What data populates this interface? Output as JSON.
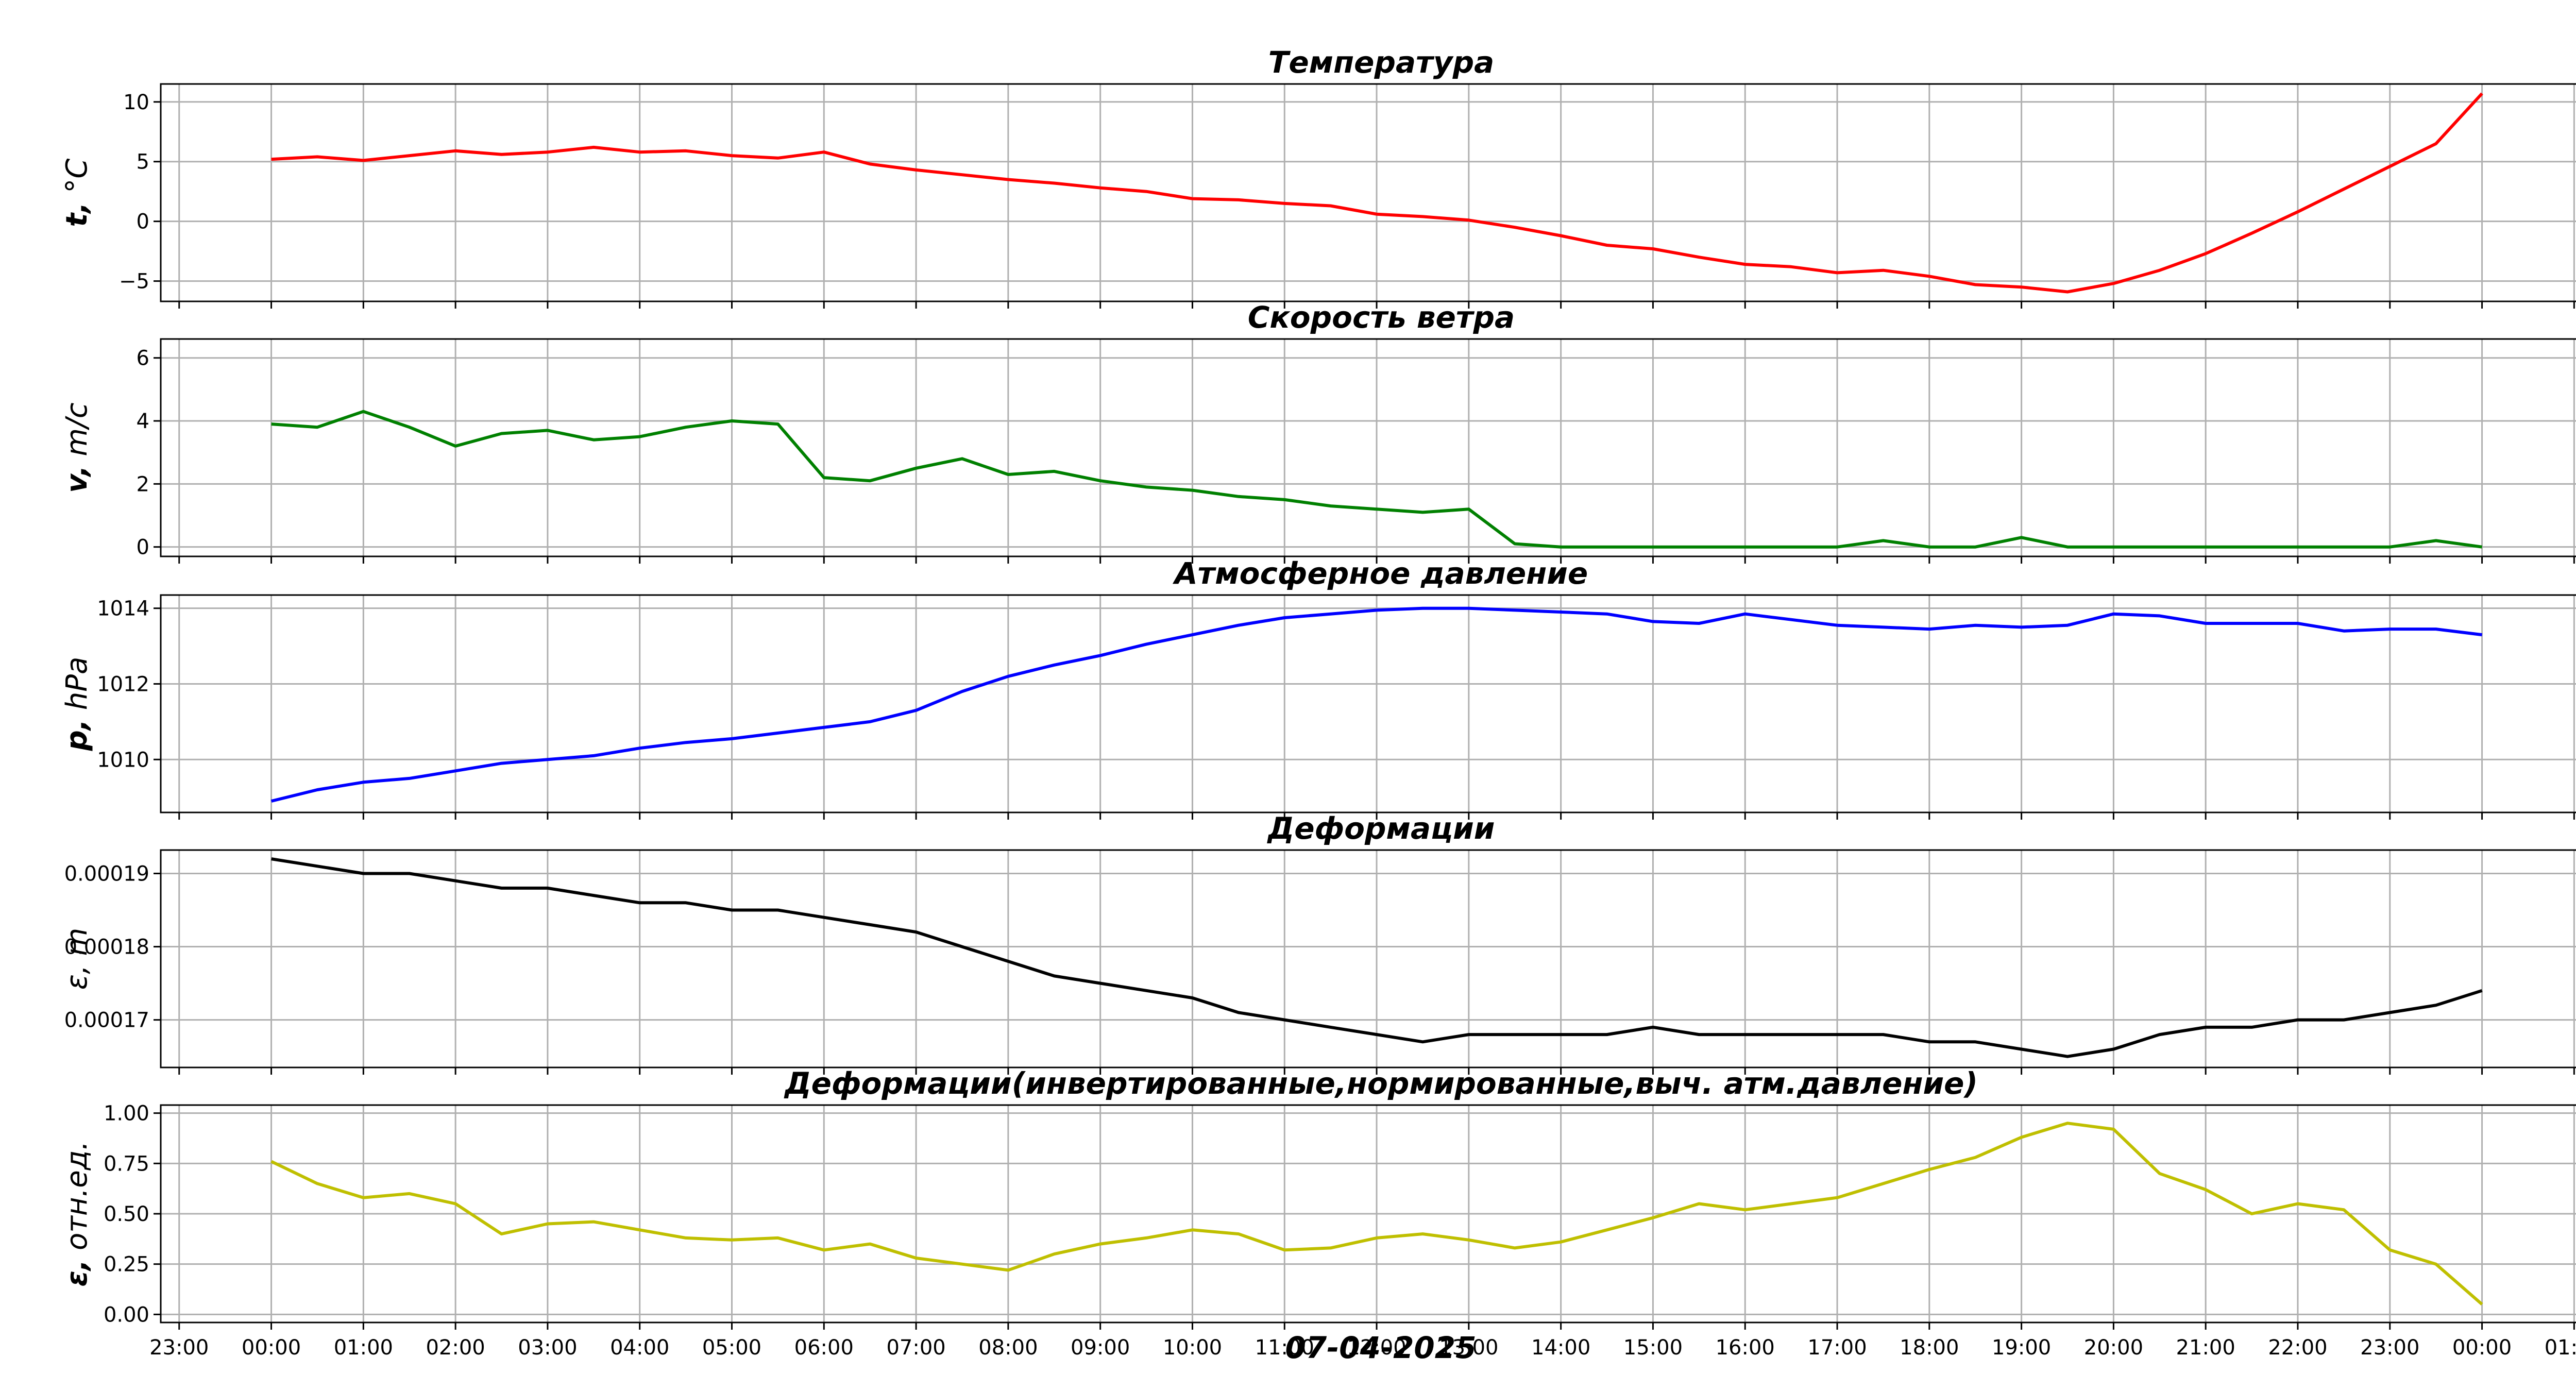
{
  "figure": {
    "xlabel": "07-04-2025",
    "x_tick_labels": [
      "23:00",
      "00:00",
      "01:00",
      "02:00",
      "03:00",
      "04:00",
      "05:00",
      "06:00",
      "07:00",
      "08:00",
      "09:00",
      "10:00",
      "11:00",
      "12:00",
      "13:00",
      "14:00",
      "15:00",
      "16:00",
      "17:00",
      "18:00",
      "19:00",
      "20:00",
      "21:00",
      "22:00",
      "23:00",
      "00:00",
      "01:00"
    ]
  },
  "chart_data": [
    {
      "type": "line",
      "title": "Температура",
      "ylabel_bold": "t,",
      "ylabel_rest": " °C",
      "xlim": [
        -1.2,
        25.3
      ],
      "ylim": [
        -6.7,
        11.5
      ],
      "yticks": [
        -5,
        0,
        5,
        10
      ],
      "ytick_labels": [
        "−5",
        "0",
        "5",
        "10"
      ],
      "grid": true,
      "color": "#ff0000",
      "series": [
        {
          "x": [
            0,
            0.5,
            1,
            1.5,
            2,
            2.5,
            3,
            3.5,
            4,
            4.5,
            5,
            5.5,
            6,
            6.5,
            7,
            7.5,
            8,
            8.5,
            9,
            9.5,
            10,
            10.5,
            11,
            11.5,
            12,
            12.5,
            13,
            13.5,
            14,
            14.5,
            15,
            15.5,
            16,
            16.5,
            17,
            17.5,
            18,
            18.5,
            19,
            19.5,
            20,
            20.5,
            21,
            21.5,
            22,
            22.5,
            23,
            23.5,
            24
          ],
          "y": [
            5.2,
            5.4,
            5.1,
            5.5,
            5.9,
            5.6,
            5.8,
            6.2,
            5.8,
            5.9,
            5.5,
            5.3,
            5.8,
            4.8,
            4.3,
            3.9,
            3.5,
            3.2,
            2.8,
            2.5,
            1.9,
            1.8,
            1.5,
            1.3,
            0.6,
            0.4,
            0.1,
            -0.5,
            -1.2,
            -2.0,
            -2.3,
            -3.0,
            -3.6,
            -3.8,
            -4.3,
            -4.1,
            -4.6,
            -5.3,
            -5.5,
            -5.9,
            -5.2,
            -4.1,
            -2.7,
            -1.0,
            0.8,
            2.7,
            4.6,
            6.5,
            10.7
          ]
        }
      ]
    },
    {
      "type": "line",
      "title": "Скорость ветра",
      "ylabel_bold": "v,",
      "ylabel_rest": " m/c",
      "xlim": [
        -1.2,
        25.3
      ],
      "ylim": [
        -0.3,
        6.6
      ],
      "yticks": [
        0,
        2,
        4,
        6
      ],
      "ytick_labels": [
        "0",
        "2",
        "4",
        "6"
      ],
      "grid": true,
      "color": "#008000",
      "series": [
        {
          "x": [
            0,
            0.5,
            1,
            1.5,
            2,
            2.5,
            3,
            3.5,
            4,
            4.5,
            5,
            5.5,
            6,
            6.5,
            7,
            7.5,
            8,
            8.5,
            9,
            9.5,
            10,
            10.5,
            11,
            11.5,
            12,
            12.5,
            13,
            13.5,
            14,
            14.5,
            15,
            15.5,
            16,
            16.5,
            17,
            17.5,
            18,
            18.5,
            19,
            19.5,
            20,
            20.5,
            21,
            21.5,
            22,
            22.5,
            23,
            23.5,
            24
          ],
          "y": [
            3.9,
            3.8,
            4.3,
            3.8,
            3.2,
            3.6,
            3.7,
            3.4,
            3.5,
            3.8,
            4.0,
            3.9,
            2.2,
            2.1,
            2.5,
            2.8,
            2.3,
            2.4,
            2.1,
            1.9,
            1.8,
            1.6,
            1.5,
            1.3,
            1.2,
            1.1,
            1.2,
            0.1,
            0.0,
            0.0,
            0.0,
            0.0,
            0.0,
            0.0,
            0.0,
            0.2,
            0.0,
            0.0,
            0.3,
            0.0,
            0.0,
            0.0,
            0.0,
            0.0,
            0.0,
            0.0,
            0.0,
            0.2,
            0.0
          ]
        }
      ]
    },
    {
      "type": "line",
      "title": "Атмосферное давление",
      "ylabel_bold": "p,",
      "ylabel_rest": " hPa",
      "xlim": [
        -1.2,
        25.3
      ],
      "ylim": [
        1008.6,
        1014.35
      ],
      "yticks": [
        1010,
        1012,
        1014
      ],
      "ytick_labels": [
        "1010",
        "1012",
        "1014"
      ],
      "grid": true,
      "color": "#0000ff",
      "series": [
        {
          "x": [
            0,
            0.5,
            1,
            1.5,
            2,
            2.5,
            3,
            3.5,
            4,
            4.5,
            5,
            5.5,
            6,
            6.5,
            7,
            7.5,
            8,
            8.5,
            9,
            9.5,
            10,
            10.5,
            11,
            11.5,
            12,
            12.5,
            13,
            13.5,
            14,
            14.5,
            15,
            15.5,
            16,
            16.5,
            17,
            17.5,
            18,
            18.5,
            19,
            19.5,
            20,
            20.5,
            21,
            21.5,
            22,
            22.5,
            23,
            23.5,
            24
          ],
          "y": [
            1008.9,
            1009.2,
            1009.4,
            1009.5,
            1009.7,
            1009.9,
            1010.0,
            1010.1,
            1010.3,
            1010.45,
            1010.55,
            1010.7,
            1010.85,
            1011.0,
            1011.3,
            1011.8,
            1012.2,
            1012.5,
            1012.75,
            1013.05,
            1013.3,
            1013.55,
            1013.75,
            1013.85,
            1013.95,
            1014.0,
            1014.0,
            1013.95,
            1013.9,
            1013.85,
            1013.65,
            1013.6,
            1013.85,
            1013.7,
            1013.55,
            1013.5,
            1013.45,
            1013.55,
            1013.5,
            1013.55,
            1013.85,
            1013.8,
            1013.6,
            1013.6,
            1013.6,
            1013.4,
            1013.45,
            1013.45,
            1013.3
          ]
        }
      ]
    },
    {
      "type": "line",
      "title": "Деформации",
      "ylabel_bold": "",
      "ylabel_rest": "ε, m",
      "xlim": [
        -1.2,
        25.3
      ],
      "ylim": [
        0.0001635,
        0.0001932
      ],
      "yticks": [
        0.00017,
        0.00018,
        0.00019
      ],
      "ytick_labels": [
        "0.00017",
        "0.00018",
        "0.00019"
      ],
      "grid": true,
      "color": "#000000",
      "series": [
        {
          "x": [
            0,
            0.5,
            1,
            1.5,
            2,
            2.5,
            3,
            3.5,
            4,
            4.5,
            5,
            5.5,
            6,
            6.5,
            7,
            7.5,
            8,
            8.5,
            9,
            9.5,
            10,
            10.5,
            11,
            11.5,
            12,
            12.5,
            13,
            13.5,
            14,
            14.5,
            15,
            15.5,
            16,
            16.5,
            17,
            17.5,
            18,
            18.5,
            19,
            19.5,
            20,
            20.5,
            21,
            21.5,
            22,
            22.5,
            23,
            23.5,
            24
          ],
          "y": [
            0.000192,
            0.000191,
            0.00019,
            0.00019,
            0.000189,
            0.000188,
            0.000188,
            0.000187,
            0.000186,
            0.000186,
            0.000185,
            0.000185,
            0.000184,
            0.000183,
            0.000182,
            0.00018,
            0.000178,
            0.000176,
            0.000175,
            0.000174,
            0.000173,
            0.000171,
            0.00017,
            0.000169,
            0.000168,
            0.000167,
            0.000168,
            0.000168,
            0.000168,
            0.000168,
            0.000169,
            0.000168,
            0.000168,
            0.000168,
            0.000168,
            0.000168,
            0.000167,
            0.000167,
            0.000166,
            0.000165,
            0.000166,
            0.000168,
            0.000169,
            0.000169,
            0.00017,
            0.00017,
            0.000171,
            0.000172,
            0.000174
          ]
        }
      ]
    },
    {
      "type": "line",
      "title": "Деформации(инвертированные,нормированные,выч. атм.давление)",
      "ylabel_bold": "ε,",
      "ylabel_rest": " отн.ед.",
      "xlim": [
        -1.2,
        25.3
      ],
      "ylim": [
        -0.04,
        1.04
      ],
      "yticks": [
        0,
        0.25,
        0.5,
        0.75,
        1
      ],
      "ytick_labels": [
        "0.00",
        "0.25",
        "0.50",
        "0.75",
        "1.00"
      ],
      "grid": true,
      "color": "#bfbf00",
      "series": [
        {
          "x": [
            0,
            0.5,
            1,
            1.5,
            2,
            2.5,
            3,
            3.5,
            4,
            4.5,
            5,
            5.5,
            6,
            6.5,
            7,
            7.5,
            8,
            8.5,
            9,
            9.5,
            10,
            10.5,
            11,
            11.5,
            12,
            12.5,
            13,
            13.5,
            14,
            14.5,
            15,
            15.5,
            16,
            16.5,
            17,
            17.5,
            18,
            18.5,
            19,
            19.5,
            20,
            20.5,
            21,
            21.5,
            22,
            22.5,
            23,
            23.5,
            24
          ],
          "y": [
            0.76,
            0.65,
            0.58,
            0.6,
            0.55,
            0.4,
            0.45,
            0.46,
            0.42,
            0.38,
            0.37,
            0.38,
            0.32,
            0.35,
            0.28,
            0.25,
            0.22,
            0.3,
            0.35,
            0.38,
            0.42,
            0.4,
            0.32,
            0.33,
            0.38,
            0.4,
            0.37,
            0.33,
            0.36,
            0.42,
            0.48,
            0.55,
            0.52,
            0.55,
            0.58,
            0.65,
            0.72,
            0.78,
            0.88,
            0.95,
            0.92,
            0.7,
            0.62,
            0.5,
            0.55,
            0.52,
            0.32,
            0.25,
            0.05
          ]
        }
      ]
    }
  ]
}
